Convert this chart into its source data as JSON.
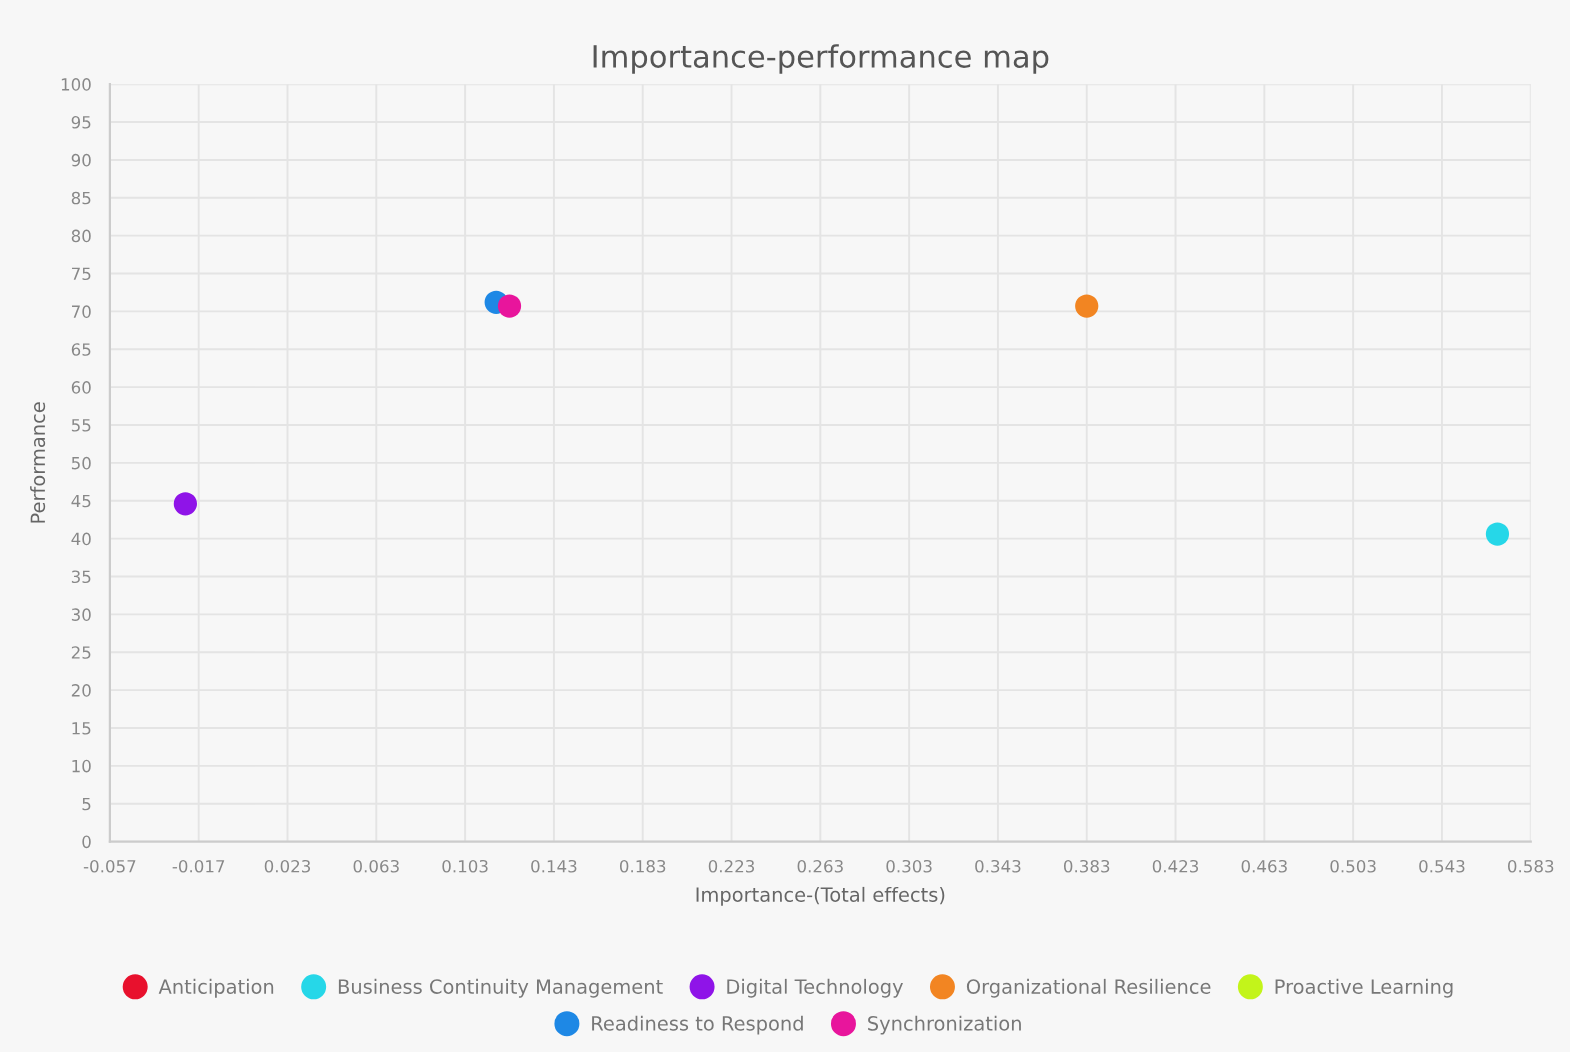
{
  "chart_data": {
    "type": "scatter",
    "title": "Importance-performance map",
    "xlabel": "Importance-(Total effects)",
    "ylabel": "Performance",
    "series": [
      {
        "name": "Anticipation",
        "color": "#e8112d",
        "x": [
          null
        ],
        "values": [
          null
        ]
      },
      {
        "name": "Business Continuity Management",
        "color": "#26d7e8",
        "x": [
          0.568
        ],
        "values": [
          40.6
        ]
      },
      {
        "name": "Digital Technology",
        "color": "#8f14e8",
        "x": [
          -0.023
        ],
        "values": [
          44.6
        ]
      },
      {
        "name": "Organizational Resilience",
        "color": "#f28522",
        "x": [
          0.383
        ],
        "values": [
          70.7
        ]
      },
      {
        "name": "Proactive Learning",
        "color": "#c3f41a",
        "x": [
          null
        ],
        "values": [
          null
        ]
      },
      {
        "name": "Readiness to Respond",
        "color": "#1e88e5",
        "x": [
          0.117
        ],
        "values": [
          71.2
        ]
      },
      {
        "name": "Synchronization",
        "color": "#e8159c",
        "x": [
          0.123
        ],
        "values": [
          70.7
        ]
      }
    ],
    "xlim": [
      -0.057,
      0.583
    ],
    "xticks": [
      -0.057,
      -0.017,
      0.023,
      0.063,
      0.103,
      0.143,
      0.183,
      0.223,
      0.263,
      0.303,
      0.343,
      0.383,
      0.423,
      0.463,
      0.503,
      0.543,
      0.583
    ],
    "ylim": [
      0,
      100
    ],
    "yticks": [
      0,
      5,
      10,
      15,
      20,
      25,
      30,
      35,
      40,
      45,
      50,
      55,
      60,
      65,
      70,
      75,
      80,
      85,
      90,
      95,
      100
    ],
    "grid": true,
    "legend": "bottom",
    "marker": "circle"
  }
}
